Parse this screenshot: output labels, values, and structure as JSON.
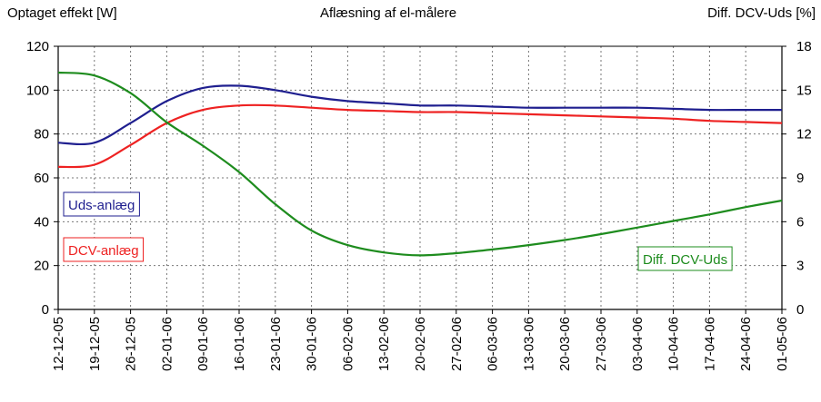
{
  "chart_data": {
    "type": "line",
    "title": "Aflæsning af el-målere",
    "ylabel_left": "Optaget effekt [W]",
    "ylabel_right": "Diff. DCV-Uds [%]",
    "ylim_left": [
      0,
      120
    ],
    "yticks_left": [
      0,
      20,
      40,
      60,
      80,
      100,
      120
    ],
    "ylim_right": [
      0,
      18
    ],
    "yticks_right": [
      0,
      3,
      6,
      9,
      12,
      15,
      18
    ],
    "grid": true,
    "categories": [
      "12-12-05",
      "19-12-05",
      "26-12-05",
      "02-01-06",
      "09-01-06",
      "16-01-06",
      "23-01-06",
      "30-01-06",
      "06-02-06",
      "13-02-06",
      "20-02-06",
      "27-02-06",
      "06-03-06",
      "13-03-06",
      "20-03-06",
      "27-03-06",
      "03-04-06",
      "10-04-06",
      "17-04-06",
      "24-04-06",
      "01-05-06"
    ],
    "series": [
      {
        "name": "Uds-anlæg",
        "axis": "left",
        "color": "#1f1f8f",
        "values": [
          76,
          76,
          85,
          95,
          101,
          102,
          100,
          97,
          95,
          94,
          93,
          93,
          92.5,
          92,
          92,
          92,
          92,
          91.5,
          91,
          91,
          91
        ]
      },
      {
        "name": "DCV-anlæg",
        "axis": "left",
        "color": "#ee2222",
        "values": [
          65,
          66,
          75,
          85,
          91,
          93,
          93,
          92,
          91,
          90.5,
          90,
          90,
          89.5,
          89,
          88.5,
          88,
          87.5,
          87,
          86,
          85.5,
          85
        ]
      },
      {
        "name": "Diff. DCV-Uds",
        "axis": "right",
        "color": "#1e8c1e",
        "values": [
          16.2,
          16.0,
          14.8,
          12.8,
          11.2,
          9.4,
          7.2,
          5.4,
          4.4,
          3.9,
          3.7,
          3.85,
          4.1,
          4.4,
          4.75,
          5.15,
          5.6,
          6.05,
          6.5,
          7.0,
          7.45
        ]
      }
    ]
  }
}
